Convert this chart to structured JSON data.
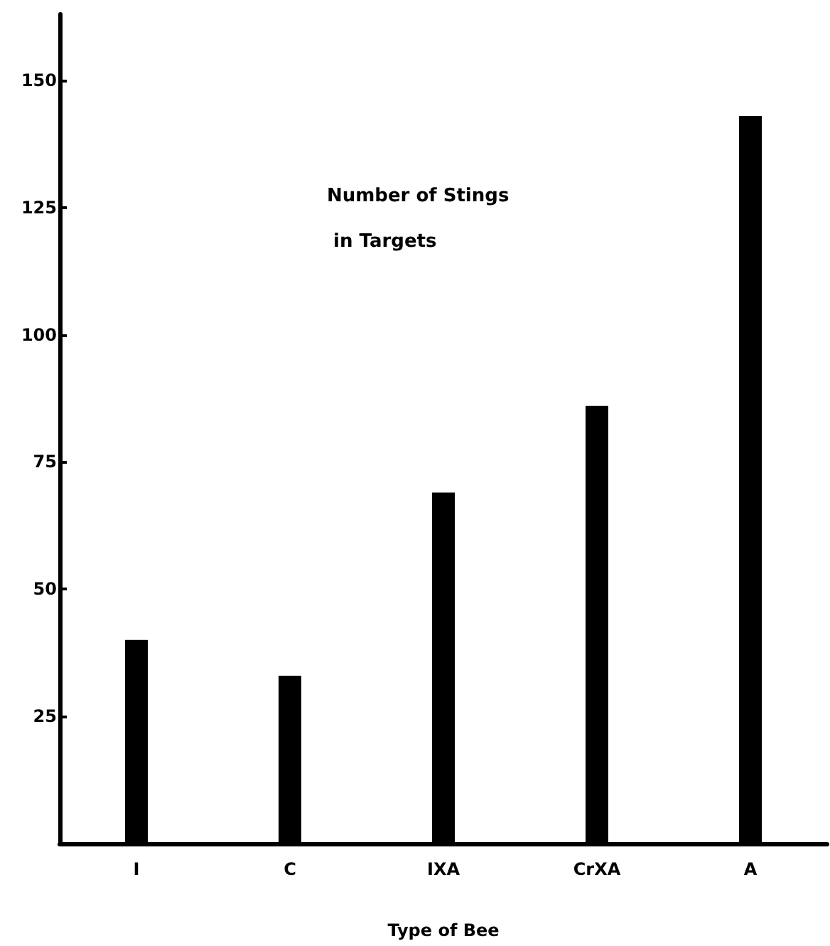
{
  "chart_data": {
    "type": "bar",
    "ylabel": "Number of Stings in Targets",
    "xlabel": "Type of Bee",
    "categories": [
      "I",
      "C",
      "IXA",
      "CrXA",
      "A"
    ],
    "values": [
      40,
      33,
      69,
      86,
      143
    ],
    "color": "#000000",
    "ylim": [
      0,
      163
    ],
    "yticks": [
      25,
      50,
      75,
      100,
      125,
      150
    ]
  }
}
